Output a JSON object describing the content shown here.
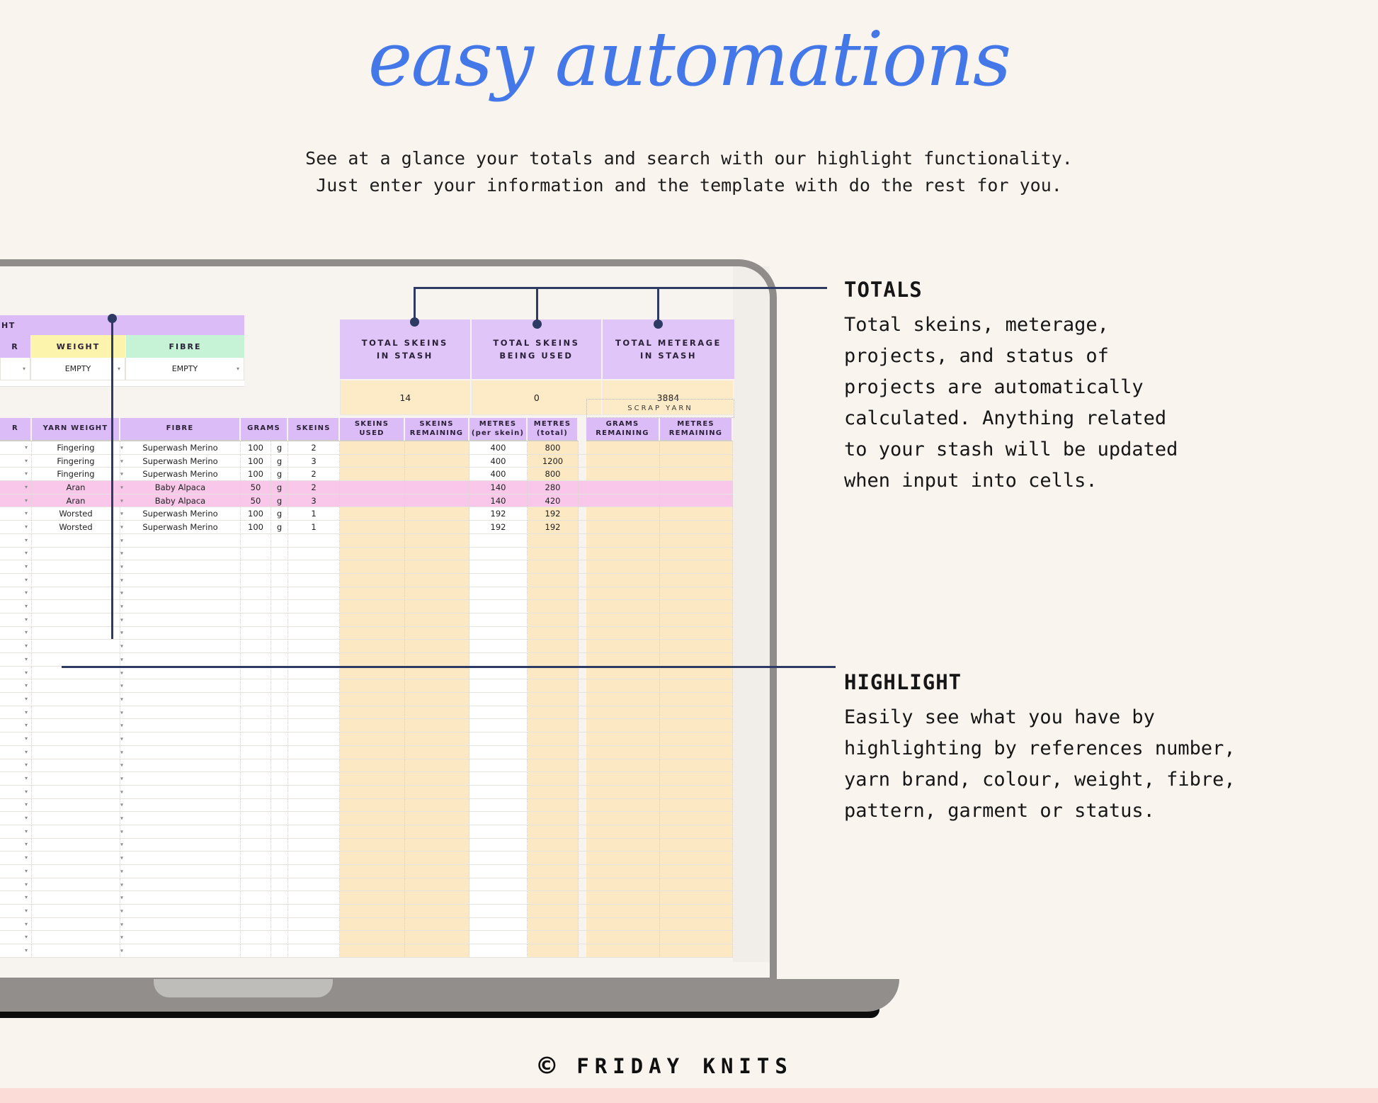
{
  "title": "easy automations",
  "subtitle": {
    "lines": [
      "See at a glance your totals and search with our highlight functionality.",
      "Just enter your information and the template with do the rest for you."
    ]
  },
  "annotations": {
    "totals": {
      "heading": "TOTALS",
      "lines": [
        "Total skeins, meterage,",
        "projects, and status of",
        "projects are automatically",
        "calculated. Anything related",
        "to your stash will be updated",
        "when input into cells."
      ]
    },
    "highlight": {
      "heading": "HIGHLIGHT",
      "lines": [
        "Easily see what you have by",
        "highlighting by references number,",
        "yarn brand, colour, weight, fibre,",
        "pattern, garment or status."
      ]
    }
  },
  "spreadsheet": {
    "highlight_banner_label": "HT",
    "filter": {
      "ref_header": "R",
      "weight_header": "WEIGHT",
      "fibre_header": "FIBRE",
      "weight_value": "EMPTY",
      "fibre_value": "EMPTY"
    },
    "totals": {
      "columns": [
        {
          "label": "TOTAL SKEINS\nIN STASH",
          "value": "14"
        },
        {
          "label": "TOTAL SKEINS\nBEING USED",
          "value": "0"
        },
        {
          "label": "TOTAL METERAGE\nIN STASH",
          "value": "3884"
        }
      ]
    },
    "scrap_yarn_label": "SCRAP YARN",
    "table": {
      "headers": [
        "R",
        "YARN WEIGHT",
        "FIBRE",
        "GRAMS",
        "SKEINS",
        "SKEINS\nUSED",
        "SKEINS\nREMAINING",
        "METRES\n(per skein)",
        "METRES\n(total)",
        "",
        "GRAMS\nREMAINING",
        "METRES\nREMAINING"
      ],
      "rows": [
        {
          "yarn_weight": "Fingering",
          "fibre": "Superwash Merino",
          "grams": "100",
          "unit": "g",
          "skeins": "2",
          "skeins_used": "",
          "skeins_remaining": "",
          "metres_per_skein": "400",
          "metres_total": "800",
          "grams_remaining": "",
          "metres_remaining": "",
          "highlighted": false
        },
        {
          "yarn_weight": "Fingering",
          "fibre": "Superwash Merino",
          "grams": "100",
          "unit": "g",
          "skeins": "3",
          "skeins_used": "",
          "skeins_remaining": "",
          "metres_per_skein": "400",
          "metres_total": "1200",
          "grams_remaining": "",
          "metres_remaining": "",
          "highlighted": false
        },
        {
          "yarn_weight": "Fingering",
          "fibre": "Superwash Merino",
          "grams": "100",
          "unit": "g",
          "skeins": "2",
          "skeins_used": "",
          "skeins_remaining": "",
          "metres_per_skein": "400",
          "metres_total": "800",
          "grams_remaining": "",
          "metres_remaining": "",
          "highlighted": false
        },
        {
          "yarn_weight": "Aran",
          "fibre": "Baby Alpaca",
          "grams": "50",
          "unit": "g",
          "skeins": "2",
          "skeins_used": "",
          "skeins_remaining": "",
          "metres_per_skein": "140",
          "metres_total": "280",
          "grams_remaining": "",
          "metres_remaining": "",
          "highlighted": true
        },
        {
          "yarn_weight": "Aran",
          "fibre": "Baby Alpaca",
          "grams": "50",
          "unit": "g",
          "skeins": "3",
          "skeins_used": "",
          "skeins_remaining": "",
          "metres_per_skein": "140",
          "metres_total": "420",
          "grams_remaining": "",
          "metres_remaining": "",
          "highlighted": true
        },
        {
          "yarn_weight": "Worsted",
          "fibre": "Superwash Merino",
          "grams": "100",
          "unit": "g",
          "skeins": "1",
          "skeins_used": "",
          "skeins_remaining": "",
          "metres_per_skein": "192",
          "metres_total": "192",
          "grams_remaining": "",
          "metres_remaining": "",
          "highlighted": false
        },
        {
          "yarn_weight": "Worsted",
          "fibre": "Superwash Merino",
          "grams": "100",
          "unit": "g",
          "skeins": "1",
          "skeins_used": "",
          "skeins_remaining": "",
          "metres_per_skein": "192",
          "metres_total": "192",
          "grams_remaining": "",
          "metres_remaining": "",
          "highlighted": false
        }
      ],
      "empty_row_count": 32
    }
  },
  "footer": {
    "copyright": "©",
    "brand": "FRIDAY KNITS"
  },
  "colors": {
    "accent_blue": "#4478e8",
    "callout_navy": "#2c3a64",
    "header_purple": "#dcbcf6",
    "totals_purple": "#e0c6f8",
    "weight_yellow": "#fcf3ac",
    "fibre_green": "#c6f3d6",
    "cell_tan": "#fce8c2",
    "highlight_pink": "#f8c7e9",
    "bottom_strip_pink": "#fbdcd7"
  }
}
